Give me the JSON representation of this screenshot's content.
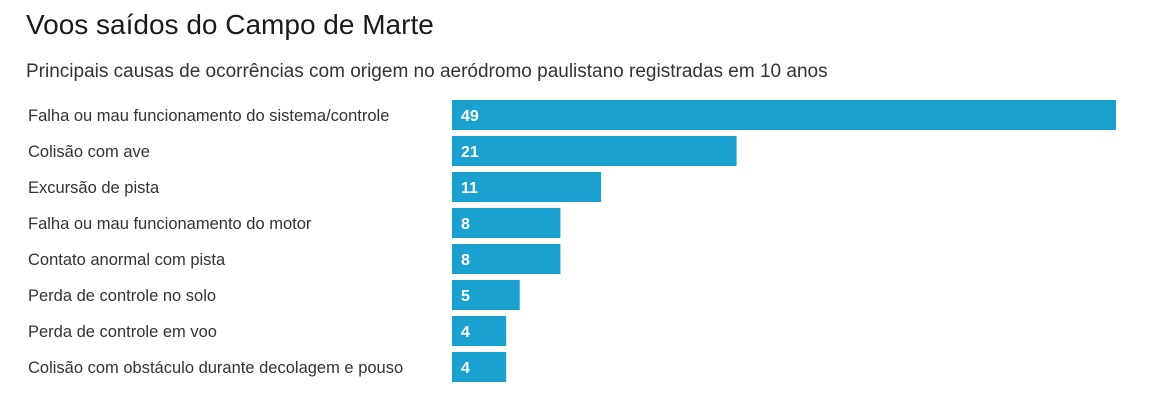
{
  "chart_data": {
    "type": "bar",
    "orientation": "horizontal",
    "title": "Voos saídos do Campo de Marte",
    "subtitle": "Principais causas de ocorrências com origem no aeródromo paulistano registradas em 10 anos",
    "categories": [
      "Falha ou mau funcionamento do sistema/controle",
      "Colisão com ave",
      "Excursão de pista",
      "Falha ou mau funcionamento do motor",
      "Contato anormal com pista",
      "Perda de controle no solo",
      "Perda de controle em voo",
      "Colisão com obstáculo durante decolagem e pouso"
    ],
    "values": [
      49,
      21,
      11,
      8,
      8,
      5,
      4,
      4
    ],
    "xlim": [
      0,
      49
    ],
    "grid": false,
    "data_labels": true,
    "bar_color": "#1aa1cf",
    "label_color": "#ffffff"
  }
}
